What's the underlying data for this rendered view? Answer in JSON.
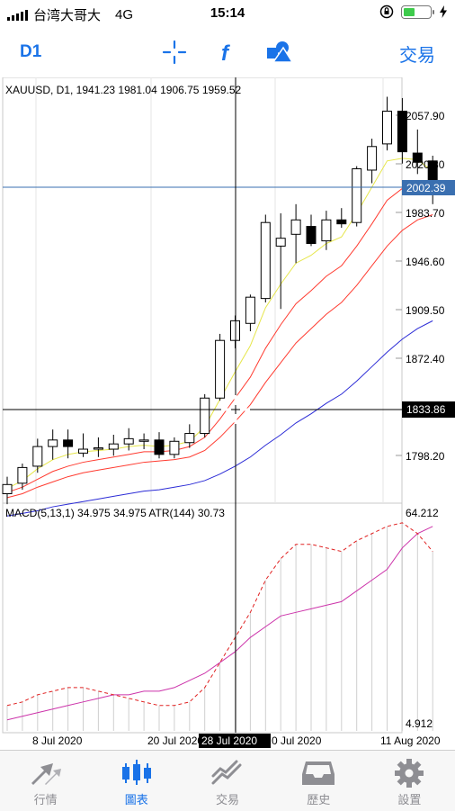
{
  "status": {
    "carrier": "台湾大哥大",
    "network": "4G",
    "time": "15:14"
  },
  "toolbar": {
    "timeframe": "D1",
    "trade_label": "交易"
  },
  "chart": {
    "header_text": "XAUUSD, D1, 1941.23 1981.04 1906.75 1959.52",
    "price_ticks": [
      "2057.90",
      "2020.80",
      "1983.70",
      "1946.60",
      "1909.50",
      "1872.40",
      "1798.20"
    ],
    "current_price": "2002.39",
    "crosshair_price": "1833.86",
    "macd_label": "MACD(5,13,1) 34.975 34.975 ATR(144) 30.73",
    "macd_max": "64.212",
    "macd_min": "4.912",
    "date_ticks": [
      "8 Jul 2020",
      "20 Jul 2020",
      "0 Jul 2020",
      "11 Aug 2020"
    ],
    "crosshair_date": "28 Jul 2020"
  },
  "chart_data": {
    "type": "candlestick",
    "symbol": "XAUUSD",
    "timeframe": "D1",
    "ohlc": [
      {
        "o": 1769,
        "h": 1782,
        "l": 1761,
        "c": 1776
      },
      {
        "o": 1777,
        "h": 1792,
        "l": 1772,
        "c": 1789
      },
      {
        "o": 1790,
        "h": 1811,
        "l": 1785,
        "c": 1805
      },
      {
        "o": 1805,
        "h": 1818,
        "l": 1795,
        "c": 1810
      },
      {
        "o": 1810,
        "h": 1818,
        "l": 1796,
        "c": 1805
      },
      {
        "o": 1800,
        "h": 1815,
        "l": 1797,
        "c": 1803
      },
      {
        "o": 1803,
        "h": 1812,
        "l": 1797,
        "c": 1804
      },
      {
        "o": 1803,
        "h": 1814,
        "l": 1798,
        "c": 1807
      },
      {
        "o": 1807,
        "h": 1819,
        "l": 1802,
        "c": 1811
      },
      {
        "o": 1809,
        "h": 1815,
        "l": 1803,
        "c": 1810
      },
      {
        "o": 1810,
        "h": 1816,
        "l": 1796,
        "c": 1799
      },
      {
        "o": 1799,
        "h": 1812,
        "l": 1796,
        "c": 1809
      },
      {
        "o": 1808,
        "h": 1822,
        "l": 1804,
        "c": 1815
      },
      {
        "o": 1815,
        "h": 1845,
        "l": 1812,
        "c": 1842
      },
      {
        "o": 1842,
        "h": 1891,
        "l": 1840,
        "c": 1886
      },
      {
        "o": 1886,
        "h": 1905,
        "l": 1880,
        "c": 1901
      },
      {
        "o": 1899,
        "h": 1921,
        "l": 1893,
        "c": 1919
      },
      {
        "o": 1918,
        "h": 1982,
        "l": 1915,
        "c": 1976
      },
      {
        "o": 1958,
        "h": 1983,
        "l": 1910,
        "c": 1964
      },
      {
        "o": 1967,
        "h": 1990,
        "l": 1945,
        "c": 1978
      },
      {
        "o": 1973,
        "h": 1982,
        "l": 1958,
        "c": 1960
      },
      {
        "o": 1962,
        "h": 1985,
        "l": 1955,
        "c": 1978
      },
      {
        "o": 1978,
        "h": 1987,
        "l": 1972,
        "c": 1975
      },
      {
        "o": 1976,
        "h": 2019,
        "l": 1973,
        "c": 2017
      },
      {
        "o": 2016,
        "h": 2040,
        "l": 2006,
        "c": 2034
      },
      {
        "o": 2036,
        "h": 2072,
        "l": 2031,
        "c": 2061
      },
      {
        "o": 2061,
        "h": 2071,
        "l": 2021,
        "c": 2030
      },
      {
        "o": 2029,
        "h": 2047,
        "l": 2013,
        "c": 2022
      },
      {
        "o": 2023,
        "h": 2027,
        "l": 1990,
        "c": 2002
      }
    ],
    "ma_series": [
      {
        "color": "#e6e64a",
        "values": [
          1773,
          1779,
          1788,
          1795,
          1799,
          1801,
          1802,
          1803,
          1805,
          1806,
          1805,
          1806,
          1809,
          1820,
          1841,
          1862,
          1882,
          1911,
          1929,
          1945,
          1951,
          1960,
          1965,
          1983,
          2003,
          2023,
          2025,
          2024,
          2015
        ]
      },
      {
        "color": "#ff3b30",
        "values": [
          1770,
          1774,
          1780,
          1786,
          1790,
          1793,
          1795,
          1797,
          1799,
          1801,
          1801,
          1802,
          1805,
          1812,
          1826,
          1842,
          1858,
          1880,
          1898,
          1914,
          1924,
          1935,
          1943,
          1958,
          1975,
          1993,
          2002,
          2006,
          2005
        ]
      },
      {
        "color": "#ff3b30",
        "values": [
          1766,
          1769,
          1774,
          1778,
          1782,
          1785,
          1787,
          1789,
          1791,
          1793,
          1794,
          1795,
          1797,
          1802,
          1812,
          1824,
          1837,
          1854,
          1869,
          1884,
          1895,
          1906,
          1915,
          1928,
          1943,
          1958,
          1970,
          1978,
          1982
        ]
      },
      {
        "color": "#2b2bd6",
        "values": [
          1752,
          1754,
          1756,
          1759,
          1761,
          1763,
          1765,
          1767,
          1769,
          1771,
          1772,
          1774,
          1776,
          1779,
          1784,
          1790,
          1797,
          1806,
          1814,
          1823,
          1830,
          1838,
          1845,
          1855,
          1866,
          1877,
          1887,
          1895,
          1901
        ]
      }
    ],
    "macd_main": [
      12,
      13,
      15,
      16,
      17,
      17,
      16,
      15,
      14,
      13,
      12,
      12,
      13,
      17,
      24,
      31,
      38,
      47,
      53,
      57,
      57,
      56,
      55,
      58,
      60,
      62,
      63,
      60,
      55
    ],
    "macd_signal": [
      8,
      9,
      10,
      11,
      12,
      13,
      14,
      15,
      15,
      16,
      16,
      17,
      19,
      21,
      24,
      27,
      31,
      34,
      37,
      38,
      39,
      40,
      41,
      44,
      47,
      50,
      56,
      60,
      62
    ]
  }
}
